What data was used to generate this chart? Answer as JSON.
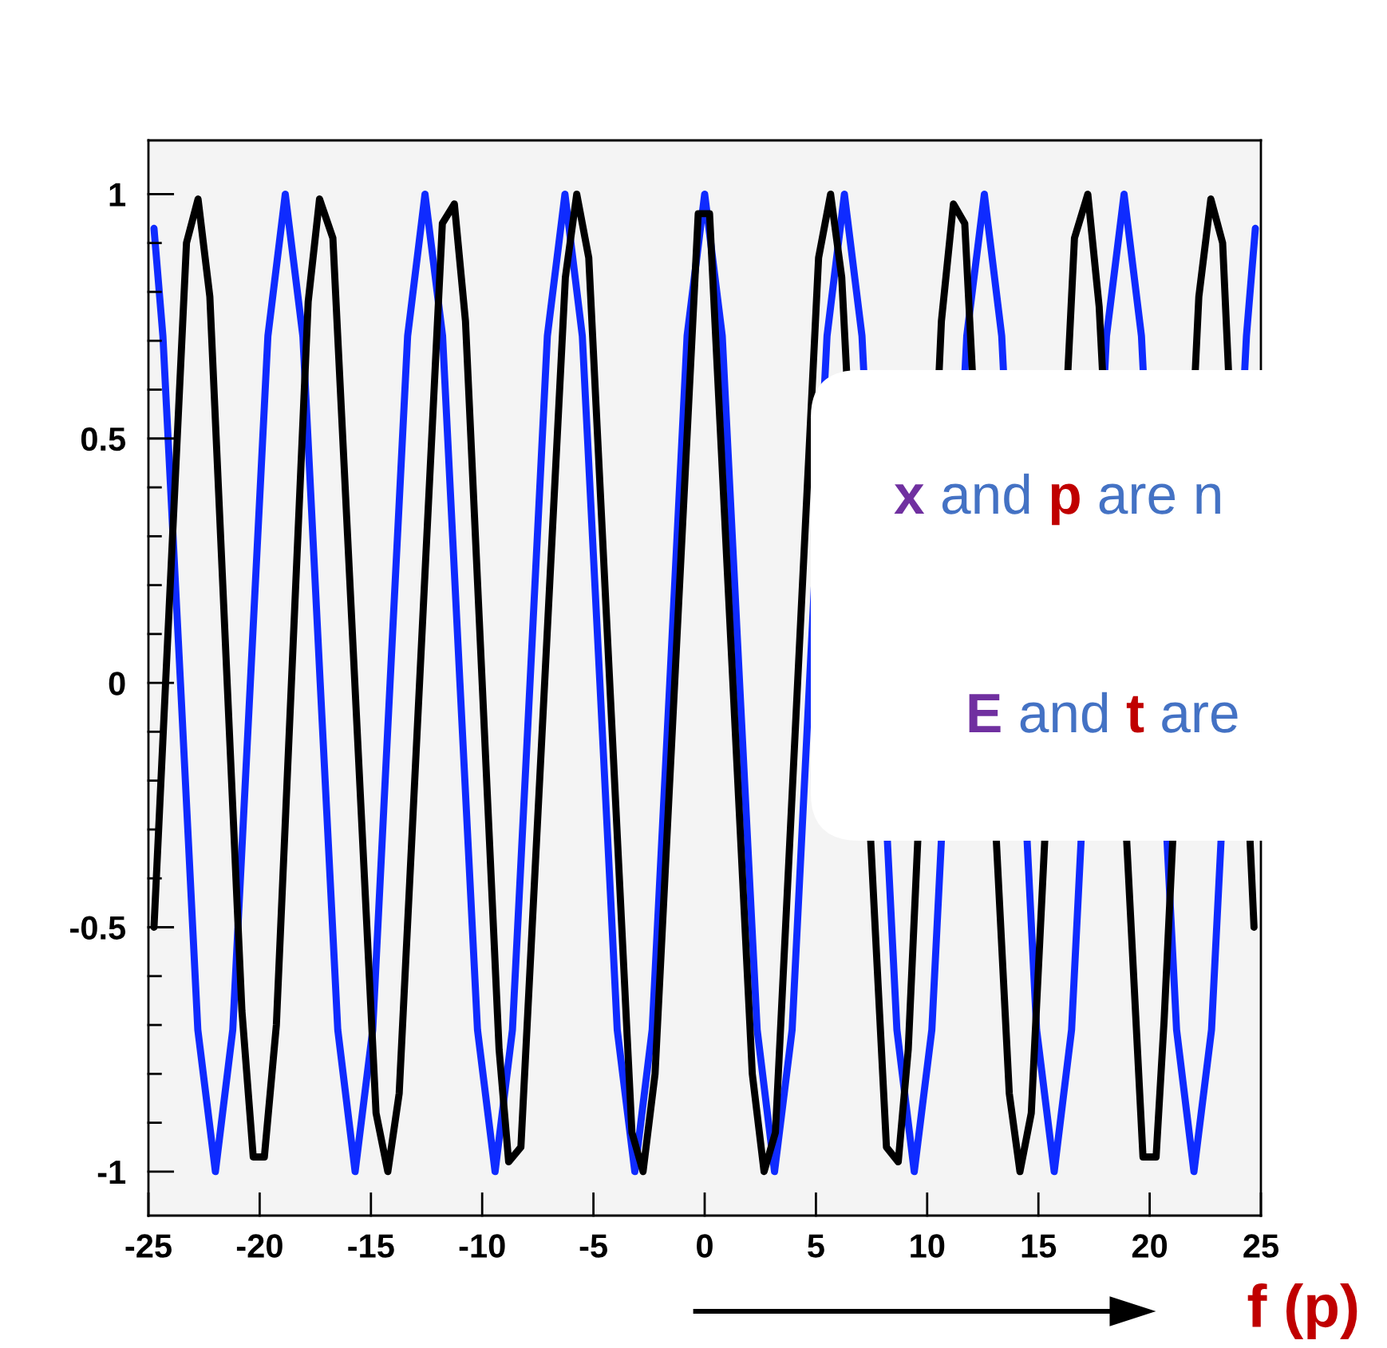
{
  "chart_data": {
    "type": "line",
    "xlabel": "f (p)",
    "xlim": [
      -25,
      25
    ],
    "xticks": [
      -25,
      -20,
      -15,
      -10,
      -5,
      0,
      5,
      10,
      15,
      20,
      25
    ],
    "ylim": [
      -1.09,
      1.11
    ],
    "yticks": [
      {
        "value": -1,
        "label": "-1"
      },
      {
        "value": -0.9,
        "label": null
      },
      {
        "value": -0.8,
        "label": null
      },
      {
        "value": -0.7,
        "label": null
      },
      {
        "value": -0.6,
        "label": null
      },
      {
        "value": -0.5,
        "label": "-0.5"
      },
      {
        "value": -0.4,
        "label": null
      },
      {
        "value": -0.3,
        "label": null
      },
      {
        "value": -0.2,
        "label": null
      },
      {
        "value": -0.1,
        "label": null
      },
      {
        "value": 0,
        "label": "0"
      },
      {
        "value": 0.1,
        "label": null
      },
      {
        "value": 0.2,
        "label": null
      },
      {
        "value": 0.3,
        "label": null
      },
      {
        "value": 0.4,
        "label": null
      },
      {
        "value": 0.5,
        "label": "0.5"
      },
      {
        "value": 0.6,
        "label": null
      },
      {
        "value": 0.7,
        "label": null
      },
      {
        "value": 0.8,
        "label": null
      },
      {
        "value": 0.9,
        "label": null
      },
      {
        "value": 1,
        "label": "1"
      }
    ],
    "grid": false,
    "marker": "none",
    "line_style": "solid",
    "annotations": [
      "x and p are n",
      "E and t are"
    ],
    "series": [
      {
        "color": "#0f2bff",
        "x": [
          -24.75,
          -24.35,
          -23.56,
          -22.78,
          -21.99,
          -21.21,
          -20.42,
          -19.63,
          -18.85,
          -18.06,
          -17.28,
          -16.49,
          -15.71,
          -14.92,
          -14.14,
          -13.35,
          -12.57,
          -11.78,
          -11.0,
          -10.21,
          -9.42,
          -8.64,
          -7.85,
          -7.07,
          -6.28,
          -5.5,
          -4.71,
          -3.93,
          -3.14,
          -2.36,
          -1.57,
          -0.79,
          0,
          0.79,
          1.57,
          2.36,
          3.14,
          3.93,
          4.71,
          5.5,
          6.28,
          7.07,
          8.64,
          9.42,
          10.21,
          11.78,
          12.57,
          13.35,
          14.92,
          15.71,
          16.49,
          18.06,
          18.85,
          19.63,
          21.21,
          21.99,
          22.78,
          24.35,
          24.75
        ],
        "values": [
          0.93,
          0.71,
          0,
          -0.71,
          -1,
          -0.71,
          0,
          0.71,
          1,
          0.71,
          0,
          -0.71,
          -1,
          -0.71,
          0,
          0.71,
          1,
          0.71,
          0,
          -0.71,
          -1,
          -0.71,
          0,
          0.71,
          1,
          0.71,
          0,
          -0.71,
          -1,
          -0.71,
          0,
          0.71,
          1,
          0.71,
          0,
          -0.71,
          -1,
          -0.71,
          0,
          0.71,
          1,
          0.71,
          -0.71,
          -1,
          -0.71,
          0.71,
          1,
          0.71,
          -0.71,
          -1,
          -0.71,
          0.71,
          1,
          0.71,
          -0.71,
          -1,
          -0.71,
          0.71,
          0.93
        ]
      },
      {
        "color": "#000000",
        "x": [
          -24.75,
          -23.29,
          -22.77,
          -22.24,
          -20.8,
          -20.29,
          -19.79,
          -19.25,
          -17.82,
          -17.31,
          -16.71,
          -14.77,
          -14.24,
          -13.73,
          -11.79,
          -11.25,
          -10.75,
          -9.24,
          -8.81,
          -8.26,
          -6.26,
          -5.75,
          -5.21,
          -3.27,
          -2.77,
          -2.23,
          -0.29,
          0.22,
          2.14,
          2.67,
          3.18,
          5.12,
          5.66,
          6.16,
          8.17,
          8.7,
          9.15,
          10.64,
          11.18,
          11.69,
          13.69,
          14.17,
          14.68,
          16.62,
          17.22,
          17.73,
          19.7,
          20.29,
          20.65,
          22.21,
          22.75,
          23.28,
          24.69
        ],
        "values": [
          -0.5,
          0.9,
          0.99,
          0.79,
          -0.67,
          -0.97,
          -0.97,
          -0.7,
          0.78,
          0.99,
          0.91,
          -0.88,
          -1.0,
          -0.84,
          0.94,
          0.98,
          0.74,
          -0.75,
          -0.98,
          -0.95,
          0.83,
          1.0,
          0.87,
          -0.92,
          -1.0,
          -0.8,
          0.96,
          0.96,
          -0.8,
          -1.0,
          -0.92,
          0.87,
          1.0,
          0.83,
          -0.95,
          -0.98,
          -0.75,
          0.74,
          0.98,
          0.94,
          -0.84,
          -1.0,
          -0.88,
          0.91,
          1.0,
          0.77,
          -0.97,
          -0.97,
          -0.69,
          0.79,
          0.99,
          0.9,
          -0.5
        ]
      }
    ]
  }
}
